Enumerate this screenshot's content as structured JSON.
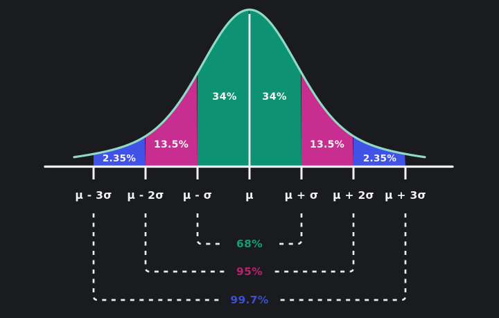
{
  "chart_data": {
    "type": "area",
    "x_tick_labels": [
      "μ - 3σ",
      "μ - 2σ",
      "μ - σ",
      "μ",
      "μ + σ",
      "μ + 2σ",
      "μ + 3σ"
    ],
    "regions": [
      {
        "from": "μ - 3σ",
        "to": "μ - 2σ",
        "label": "2.35%",
        "value": 2.35,
        "color": "#4152e6"
      },
      {
        "from": "μ - 2σ",
        "to": "μ - σ",
        "label": "13.5%",
        "value": 13.5,
        "color": "#c72e90"
      },
      {
        "from": "μ - σ",
        "to": "μ",
        "label": "34%",
        "value": 34,
        "color": "#0d9373"
      },
      {
        "from": "μ",
        "to": "μ + σ",
        "label": "34%",
        "value": 34,
        "color": "#0d9373"
      },
      {
        "from": "μ + σ",
        "to": "μ + 2σ",
        "label": "13.5%",
        "value": 13.5,
        "color": "#c72e90"
      },
      {
        "from": "μ + 2σ",
        "to": "μ + 3σ",
        "label": "2.35%",
        "value": 2.35,
        "color": "#4152e6"
      }
    ],
    "brackets": [
      {
        "label": "68%",
        "value": 68,
        "from": "μ - σ",
        "to": "μ + σ",
        "color": "#12a06d"
      },
      {
        "label": "95%",
        "value": 95,
        "from": "μ - 2σ",
        "to": "μ + 2σ",
        "color": "#b5256f"
      },
      {
        "label": "99.7%",
        "value": 99.7,
        "from": "μ - 3σ",
        "to": "μ + 3σ",
        "color": "#3c4ed6"
      }
    ],
    "colors": {
      "background": "#1a1b1f",
      "curve_stroke": "#8fd9c5",
      "axis": "#f2f2f2",
      "dashes": "#ececec",
      "label_text": "#f6f6f6"
    }
  }
}
